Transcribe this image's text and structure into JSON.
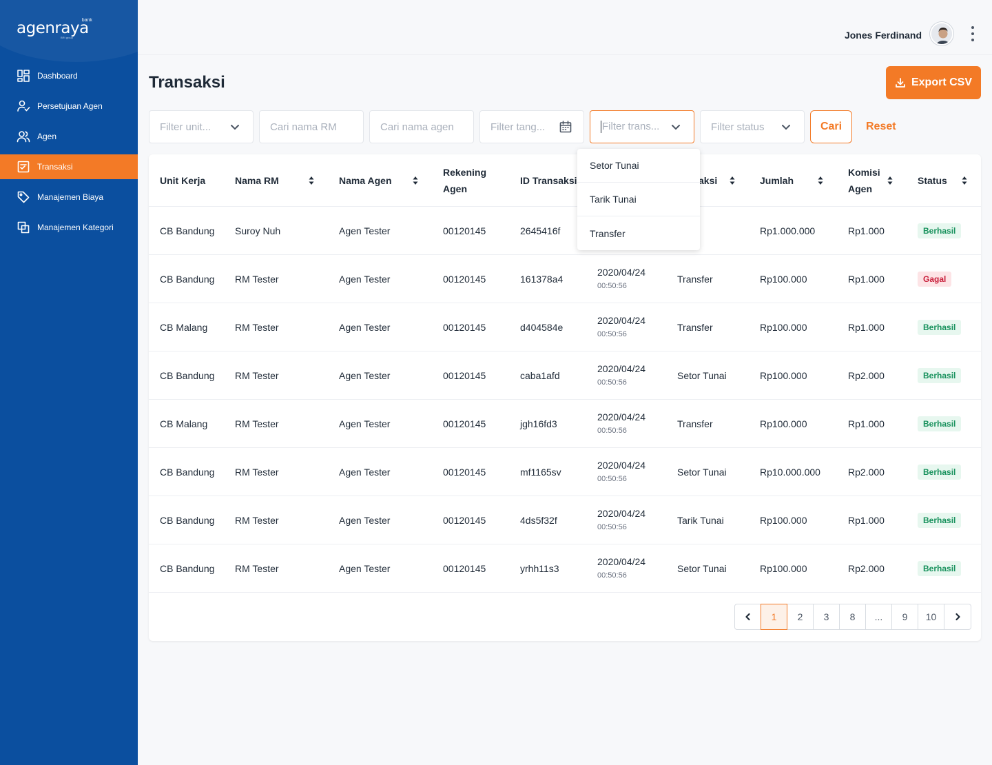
{
  "brand": {
    "name": "agenraya",
    "superscript": "bank",
    "sub": "BRI group"
  },
  "sidebar": {
    "items": [
      {
        "label": "Dashboard",
        "icon": "dashboard-icon"
      },
      {
        "label": "Persetujuan Agen",
        "icon": "user-check-icon"
      },
      {
        "label": "Agen",
        "icon": "users-icon"
      },
      {
        "label": "Transaksi",
        "icon": "transaction-icon",
        "active": true
      },
      {
        "label": "Manajemen Biaya",
        "icon": "tag-icon"
      },
      {
        "label": "Manajemen Kategori",
        "icon": "copy-icon"
      }
    ]
  },
  "header": {
    "user_name": "Jones Ferdinand"
  },
  "page": {
    "title": "Transaksi",
    "export_label": "Export CSV"
  },
  "filters": {
    "unit": "Filter unit...",
    "rm": "Cari nama RM",
    "agen": "Cari nama agen",
    "tanggal": "Filter tang...",
    "transaksi": "Filter trans...",
    "status": "Filter status",
    "search_label": "Cari",
    "reset_label": "Reset"
  },
  "dropdown": {
    "options": [
      "Setor Tunai",
      "Tarik Tunai",
      "Transfer"
    ]
  },
  "table": {
    "headers": {
      "unit": "Unit Kerja",
      "rm": "Nama RM",
      "agen": "Nama Agen",
      "rekening_1": "Rekening",
      "rekening_2": "Agen",
      "id": "ID Transaksi",
      "tipe_partial": "aksi",
      "jumlah": "Jumlah",
      "komisi_1": "Komisi",
      "komisi_2": "Agen",
      "status": "Status"
    },
    "rows": [
      {
        "unit": "CB Bandung",
        "rm": "Suroy Nuh",
        "agen": "Agen Tester",
        "rekening": "00120145",
        "id": "2645416f",
        "date": "",
        "time": "",
        "tipe": "fer",
        "jumlah": "Rp1.000.000",
        "komisi": "Rp1.000",
        "status": "Berhasil"
      },
      {
        "unit": "CB Bandung",
        "rm": "RM Tester",
        "agen": "Agen Tester",
        "rekening": "00120145",
        "id": "161378a4",
        "date": "2020/04/24",
        "time": "00:50:56",
        "tipe": "Transfer",
        "jumlah": "Rp100.000",
        "komisi": "Rp1.000",
        "status": "Gagal"
      },
      {
        "unit": "CB Malang",
        "rm": "RM Tester",
        "agen": "Agen Tester",
        "rekening": "00120145",
        "id": "d404584e",
        "date": "2020/04/24",
        "time": "00:50:56",
        "tipe": "Transfer",
        "jumlah": "Rp100.000",
        "komisi": "Rp1.000",
        "status": "Berhasil"
      },
      {
        "unit": "CB Bandung",
        "rm": "RM Tester",
        "agen": "Agen Tester",
        "rekening": "00120145",
        "id": "caba1afd",
        "date": "2020/04/24",
        "time": "00:50:56",
        "tipe": "Setor Tunai",
        "jumlah": "Rp100.000",
        "komisi": "Rp2.000",
        "status": "Berhasil"
      },
      {
        "unit": "CB Malang",
        "rm": "RM Tester",
        "agen": "Agen Tester",
        "rekening": "00120145",
        "id": "jgh16fd3",
        "date": "2020/04/24",
        "time": "00:50:56",
        "tipe": "Transfer",
        "jumlah": "Rp100.000",
        "komisi": "Rp1.000",
        "status": "Berhasil"
      },
      {
        "unit": "CB Bandung",
        "rm": "RM Tester",
        "agen": "Agen Tester",
        "rekening": "00120145",
        "id": "mf1165sv",
        "date": "2020/04/24",
        "time": "00:50:56",
        "tipe": "Setor Tunai",
        "jumlah": "Rp10.000.000",
        "komisi": "Rp2.000",
        "status": "Berhasil"
      },
      {
        "unit": "CB Bandung",
        "rm": "RM Tester",
        "agen": "Agen Tester",
        "rekening": "00120145",
        "id": "4ds5f32f",
        "date": "2020/04/24",
        "time": "00:50:56",
        "tipe": "Tarik Tunai",
        "jumlah": "Rp100.000",
        "komisi": "Rp1.000",
        "status": "Berhasil"
      },
      {
        "unit": "CB Bandung",
        "rm": "RM Tester",
        "agen": "Agen Tester",
        "rekening": "00120145",
        "id": "yrhh11s3",
        "date": "2020/04/24",
        "time": "00:50:56",
        "tipe": "Setor Tunai",
        "jumlah": "Rp100.000",
        "komisi": "Rp2.000",
        "status": "Berhasil"
      }
    ]
  },
  "pagination": {
    "pages": [
      "1",
      "2",
      "3",
      "8",
      "...",
      "9",
      "10"
    ],
    "current": "1"
  },
  "colors": {
    "sidebar": "#0b4f9f",
    "accent": "#f37a26",
    "success": "#17915c",
    "danger": "#c81e3a"
  }
}
